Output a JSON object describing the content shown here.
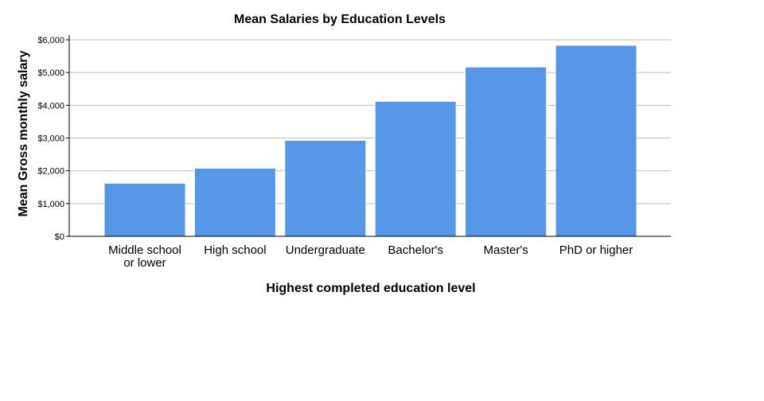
{
  "chart_data": {
    "type": "bar",
    "title": "Mean Salaries by Education Levels",
    "xlabel": "Highest completed education level",
    "ylabel": "Mean Gross monthly salary",
    "categories": [
      "Middle school or lower",
      "High school",
      "Undergraduate",
      "Bachelor's",
      "Master's",
      "PhD or higher"
    ],
    "category_lines": [
      [
        "Middle school",
        "or lower"
      ],
      [
        "High school"
      ],
      [
        "Undergraduate"
      ],
      [
        "Bachelor's"
      ],
      [
        "Master's"
      ],
      [
        "PhD or higher"
      ]
    ],
    "values": [
      1620,
      2080,
      2930,
      4120,
      5170,
      5830
    ],
    "ylim": [
      0,
      6000
    ],
    "yticks": [
      0,
      1000,
      2000,
      3000,
      4000,
      5000,
      6000
    ],
    "ytick_labels": [
      "$0",
      "$1,000",
      "$2,000",
      "$3,000",
      "$4,000",
      "$5,000",
      "$6,000"
    ],
    "grid": true,
    "bar_color": "#5596e6",
    "grid_color": "#bdbdbd"
  }
}
